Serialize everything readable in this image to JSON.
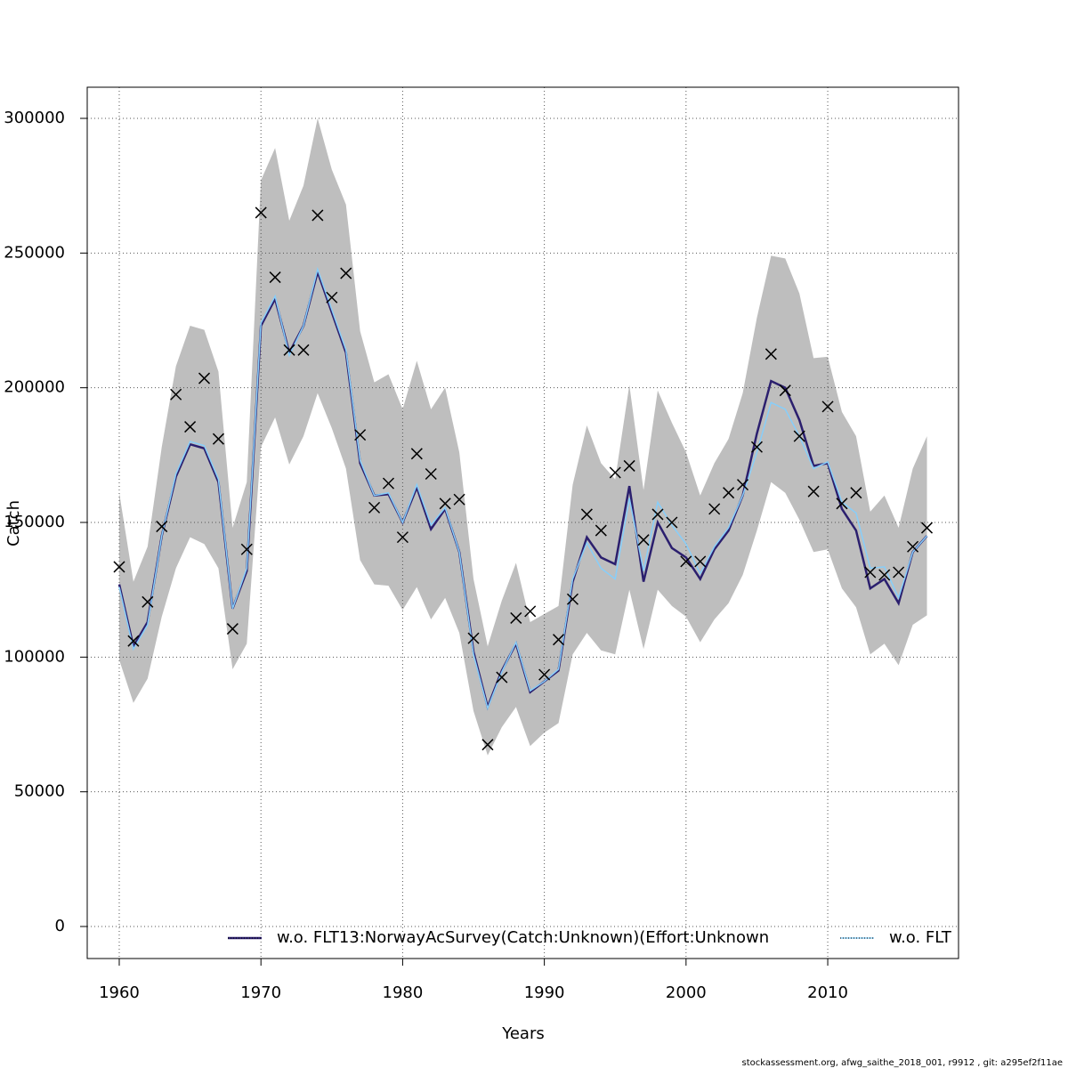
{
  "chart_data": {
    "type": "line",
    "xlabel": "Years",
    "ylabel": "Catch",
    "footer": "stockassessment.org, afwg_saithe_2018_001, r9912 , git: a295ef2f11ae",
    "x": [
      1960,
      1961,
      1962,
      1963,
      1964,
      1965,
      1966,
      1967,
      1968,
      1969,
      1970,
      1971,
      1972,
      1973,
      1974,
      1975,
      1976,
      1977,
      1978,
      1979,
      1980,
      1981,
      1982,
      1983,
      1984,
      1985,
      1986,
      1987,
      1988,
      1989,
      1990,
      1991,
      1992,
      1993,
      1994,
      1995,
      1996,
      1997,
      1998,
      1999,
      2000,
      2001,
      2002,
      2003,
      2004,
      2005,
      2006,
      2007,
      2008,
      2009,
      2010,
      2011,
      2012,
      2013,
      2014,
      2015,
      2016,
      2017
    ],
    "band": {
      "color": "#bebebe",
      "upper": [
        161000,
        128000,
        141000,
        178000,
        208000,
        223000,
        221500,
        206000,
        148000,
        165000,
        277000,
        289000,
        262000,
        275000,
        300000,
        281000,
        268000,
        221000,
        202000,
        205000,
        192000,
        210000,
        192000,
        200000,
        176000,
        129000,
        104000,
        121000,
        135000,
        113000,
        116000,
        119000,
        164000,
        186000,
        172000,
        166000,
        201000,
        162000,
        199000,
        187000,
        176000,
        160000,
        172000,
        181000,
        198000,
        226000,
        249000,
        248000,
        235000,
        211000,
        211500,
        191000,
        182000,
        154000,
        160000,
        148000,
        170000,
        182000
      ],
      "lower": [
        99000,
        83000,
        92000,
        115000,
        133000,
        144500,
        142000,
        133000,
        95500,
        105000,
        178000,
        189000,
        171500,
        182000,
        198000,
        185000,
        170000,
        136000,
        127000,
        126500,
        117500,
        126000,
        114000,
        122000,
        109000,
        80000,
        63500,
        74000,
        81500,
        67000,
        72000,
        75500,
        101000,
        109000,
        102500,
        101000,
        125000,
        103000,
        125000,
        119000,
        115000,
        105500,
        114000,
        120000,
        130500,
        147000,
        165000,
        161000,
        151000,
        139000,
        140000,
        125500,
        118500,
        101000,
        105000,
        97000,
        112000,
        115500
      ]
    },
    "series": [
      {
        "name": "w.o. FLT13:NorwayAcSurvey(Catch:Unknown)(Effort:Unknown",
        "color": "#2b1f6e",
        "dash": "solid",
        "values": [
          127000,
          104000,
          113000,
          145000,
          167000,
          179000,
          177500,
          165000,
          118000,
          132000,
          223000,
          233000,
          213000,
          223000,
          243000,
          228000,
          213000,
          172000,
          160000,
          160500,
          150000,
          163000,
          147500,
          155000,
          139000,
          102000,
          81500,
          95000,
          105000,
          87000,
          91000,
          95000,
          128000,
          144500,
          137000,
          134500,
          163500,
          128000,
          150000,
          140500,
          137000,
          129000,
          140000,
          147000,
          160000,
          183000,
          202500,
          200000,
          188000,
          171000,
          172000,
          155000,
          147000,
          125500,
          129000,
          120000,
          139000,
          145000
        ]
      },
      {
        "name": "w.o. FLT",
        "color": "#87cefa",
        "dash": "dotted",
        "values": [
          126000,
          103000,
          112000,
          145000,
          168000,
          180000,
          178500,
          166000,
          118000,
          133000,
          224000,
          234000,
          212000,
          223000,
          244000,
          229000,
          214000,
          173000,
          160000,
          161000,
          150000,
          164000,
          149000,
          155500,
          139000,
          101000,
          81000,
          94500,
          105500,
          87500,
          91000,
          95500,
          129000,
          142500,
          133000,
          129000,
          159000,
          132000,
          157500,
          149000,
          142000,
          131000,
          141000,
          148000,
          160000,
          176000,
          194500,
          192000,
          182000,
          170000,
          172500,
          157500,
          153500,
          133000,
          133500,
          122000,
          139000,
          145000
        ]
      }
    ],
    "observed": {
      "color": "#000000",
      "values": [
        133500,
        106000,
        120500,
        148500,
        197500,
        185500,
        203500,
        181000,
        110500,
        140000,
        265000,
        241000,
        214000,
        214000,
        264000,
        233500,
        242500,
        182500,
        155500,
        164500,
        144500,
        175500,
        168000,
        157000,
        158500,
        107000,
        67500,
        92500,
        114500,
        117000,
        93500,
        106500,
        121500,
        153000,
        147000,
        168500,
        171000,
        143500,
        153000,
        150000,
        135500,
        135500,
        155000,
        161000,
        164000,
        178000,
        212500,
        199000,
        182000,
        161500,
        193000,
        157000,
        161000,
        131500,
        130500,
        131500,
        141000,
        148000
      ]
    },
    "xlim": [
      1957.74,
      2019.23
    ],
    "ylim": [
      -11894,
      311564
    ],
    "xticks": [
      1960,
      1970,
      1980,
      1990,
      2000,
      2010
    ],
    "yticks": [
      0,
      50000,
      100000,
      150000,
      200000,
      250000,
      300000
    ],
    "grid": true,
    "legend": "bottom"
  }
}
